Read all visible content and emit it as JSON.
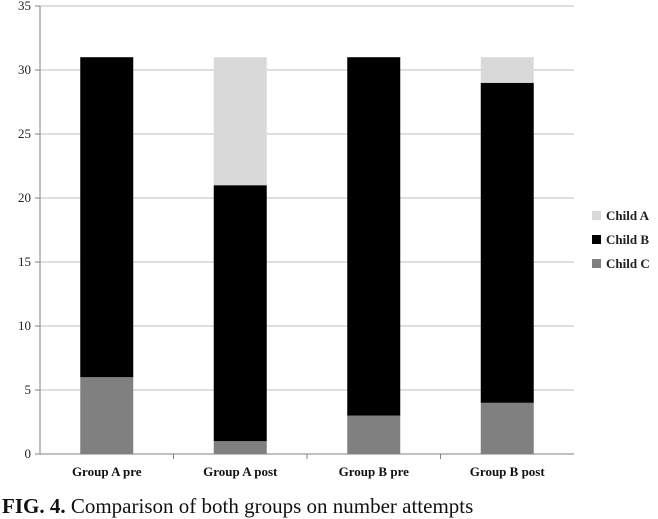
{
  "chart_data": {
    "type": "bar",
    "stacked": true,
    "categories": [
      "Group A pre",
      "Group A post",
      "Group B pre",
      "Group B post"
    ],
    "series": [
      {
        "name": "Child C",
        "values": [
          6,
          1,
          3,
          4
        ],
        "color": "#808080"
      },
      {
        "name": "Child B",
        "values": [
          25,
          20,
          28,
          25
        ],
        "color": "#000000"
      },
      {
        "name": "Child A",
        "values": [
          0,
          10,
          0,
          2
        ],
        "color": "#d9d9d9"
      }
    ],
    "legend_order": [
      "Child A",
      "Child B",
      "Child C"
    ],
    "ylim": [
      0,
      35
    ],
    "yticks": [
      0,
      5,
      10,
      15,
      20,
      25,
      30,
      35
    ],
    "grid": true,
    "legend_position": "right"
  },
  "caption": {
    "label": "FIG. 4.",
    "text": "Comparison of both groups on number attempts"
  }
}
